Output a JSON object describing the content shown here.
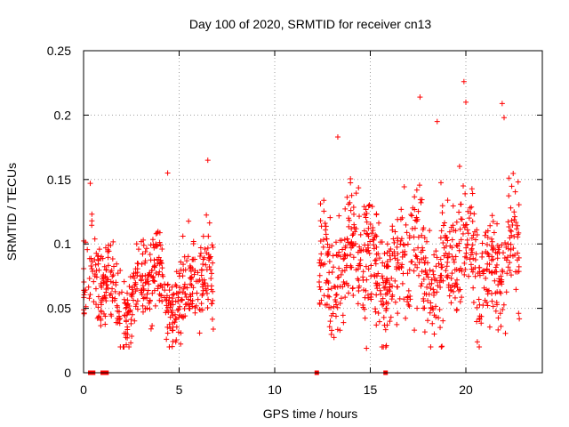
{
  "chart_data": {
    "type": "scatter",
    "title": "Day 100 of 2020, SRMTID for receiver cn13",
    "xlabel": "GPS time / hours",
    "ylabel": "SRMTID / TECUs",
    "xlim": [
      0,
      24
    ],
    "ylim": [
      0,
      0.25
    ],
    "grid": true,
    "marker": "plus",
    "color": "#ff0000",
    "xticks": [
      0,
      5,
      10,
      15,
      20
    ],
    "xtick_labels": [
      "0",
      "5",
      "10",
      "15",
      "20"
    ],
    "yticks": [
      0,
      0.05,
      0.1,
      0.15,
      0.2,
      0.25
    ],
    "ytick_labels": [
      "0",
      "0.05",
      "0.1",
      "0.15",
      "0.2",
      "0.25"
    ],
    "series": [
      {
        "name": "SRMTID",
        "segments": [
          {
            "x_start": 0.0,
            "x_end": 6.8,
            "typical_min": 0.02,
            "typical_max": 0.165,
            "center": 0.065
          },
          {
            "x_start": 12.3,
            "x_end": 22.8,
            "typical_min": 0.02,
            "typical_max": 0.226,
            "center": 0.085
          }
        ],
        "notable_points": [
          [
            0.35,
            0.147
          ],
          [
            4.4,
            0.155
          ],
          [
            6.5,
            0.165
          ],
          [
            13.3,
            0.183
          ],
          [
            17.6,
            0.214
          ],
          [
            18.5,
            0.195
          ],
          [
            19.9,
            0.226
          ],
          [
            20.0,
            0.21
          ],
          [
            21.9,
            0.209
          ],
          [
            22.0,
            0.198
          ],
          [
            14.8,
            0.019
          ]
        ],
        "zero_points": [
          0.35,
          0.5,
          1.0,
          1.2,
          12.2,
          15.8
        ]
      }
    ]
  }
}
